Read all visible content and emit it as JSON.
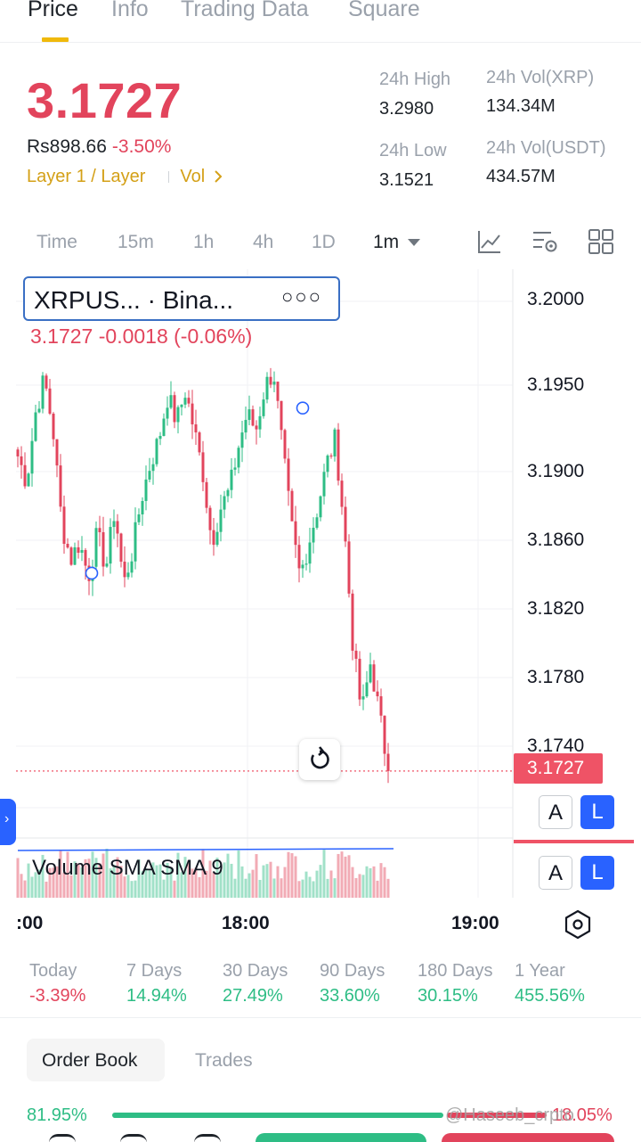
{
  "tabs": [
    {
      "label": "Price",
      "active": true
    },
    {
      "label": "Info",
      "active": false
    },
    {
      "label": "Trading Data",
      "active": false
    },
    {
      "label": "Square",
      "active": false
    }
  ],
  "ticker": {
    "last_price": "3.1727",
    "fiat_price": "Rs898.66",
    "change_pct": "-3.50%",
    "tag_category": "Layer 1 / Layer",
    "tag_vol": "Vol",
    "high_label": "24h High",
    "high_value": "3.2980",
    "low_label": "24h Low",
    "low_value": "3.1521",
    "vol_base_label": "24h Vol(XRP)",
    "vol_base_value": "134.34M",
    "vol_quote_label": "24h Vol(USDT)",
    "vol_quote_value": "434.57M"
  },
  "intervals": [
    {
      "label": "Time",
      "active": false
    },
    {
      "label": "15m",
      "active": false
    },
    {
      "label": "1h",
      "active": false
    },
    {
      "label": "4h",
      "active": false
    },
    {
      "label": "1D",
      "active": false
    },
    {
      "label": "1m",
      "active": true
    }
  ],
  "chart": {
    "legend_title": "XRPUS...   · Bina...",
    "legend_values": "3.1727  -0.0018 (-0.06%)",
    "last_price_tag": "3.1727",
    "volume_label": "Volume SMA SMA 9",
    "scale_a": "A",
    "scale_l": "L",
    "handle_glyph": "›",
    "x_ticks": [
      ":00",
      "18:00",
      "19:00"
    ]
  },
  "chart_data": {
    "type": "candlestick",
    "y_ticks": [
      "3.2000",
      "3.1950",
      "3.1900",
      "3.1860",
      "3.1820",
      "3.1780",
      "3.1740"
    ],
    "x_ticks": [
      ":00",
      "18:00",
      "19:00"
    ],
    "last_price": 3.1727,
    "close_path": [
      3.191,
      3.1895,
      3.1935,
      3.1955,
      3.1925,
      3.187,
      3.185,
      3.186,
      3.184,
      3.1865,
      3.1845,
      3.188,
      3.1835,
      3.1855,
      3.1885,
      3.1905,
      3.192,
      3.1945,
      3.193,
      3.1948,
      3.1925,
      3.19,
      3.186,
      3.188,
      3.189,
      3.1915,
      3.1935,
      3.1925,
      3.195,
      3.196,
      3.1915,
      3.187,
      3.184,
      3.186,
      3.188,
      3.1905,
      3.192,
      3.187,
      3.18,
      3.176,
      3.179,
      3.176,
      3.1727
    ],
    "colors": {
      "up": "#2ebd85",
      "down": "#e2445c"
    }
  },
  "performance": [
    {
      "label": "Today",
      "value": "-3.39%",
      "trend": "neg"
    },
    {
      "label": "7 Days",
      "value": "14.94%",
      "trend": "pos"
    },
    {
      "label": "30 Days",
      "value": "27.49%",
      "trend": "pos"
    },
    {
      "label": "90 Days",
      "value": "33.60%",
      "trend": "pos"
    },
    {
      "label": "180 Days",
      "value": "30.15%",
      "trend": "pos"
    },
    {
      "label": "1 Year",
      "value": "455.56%",
      "trend": "pos"
    }
  ],
  "book_tabs": [
    {
      "label": "Order Book",
      "active": true
    },
    {
      "label": "Trades",
      "active": false
    }
  ],
  "book_ratio": {
    "buy": "81.95%",
    "sell": "18.05%"
  },
  "watermark": "@Haseeb_crpto"
}
